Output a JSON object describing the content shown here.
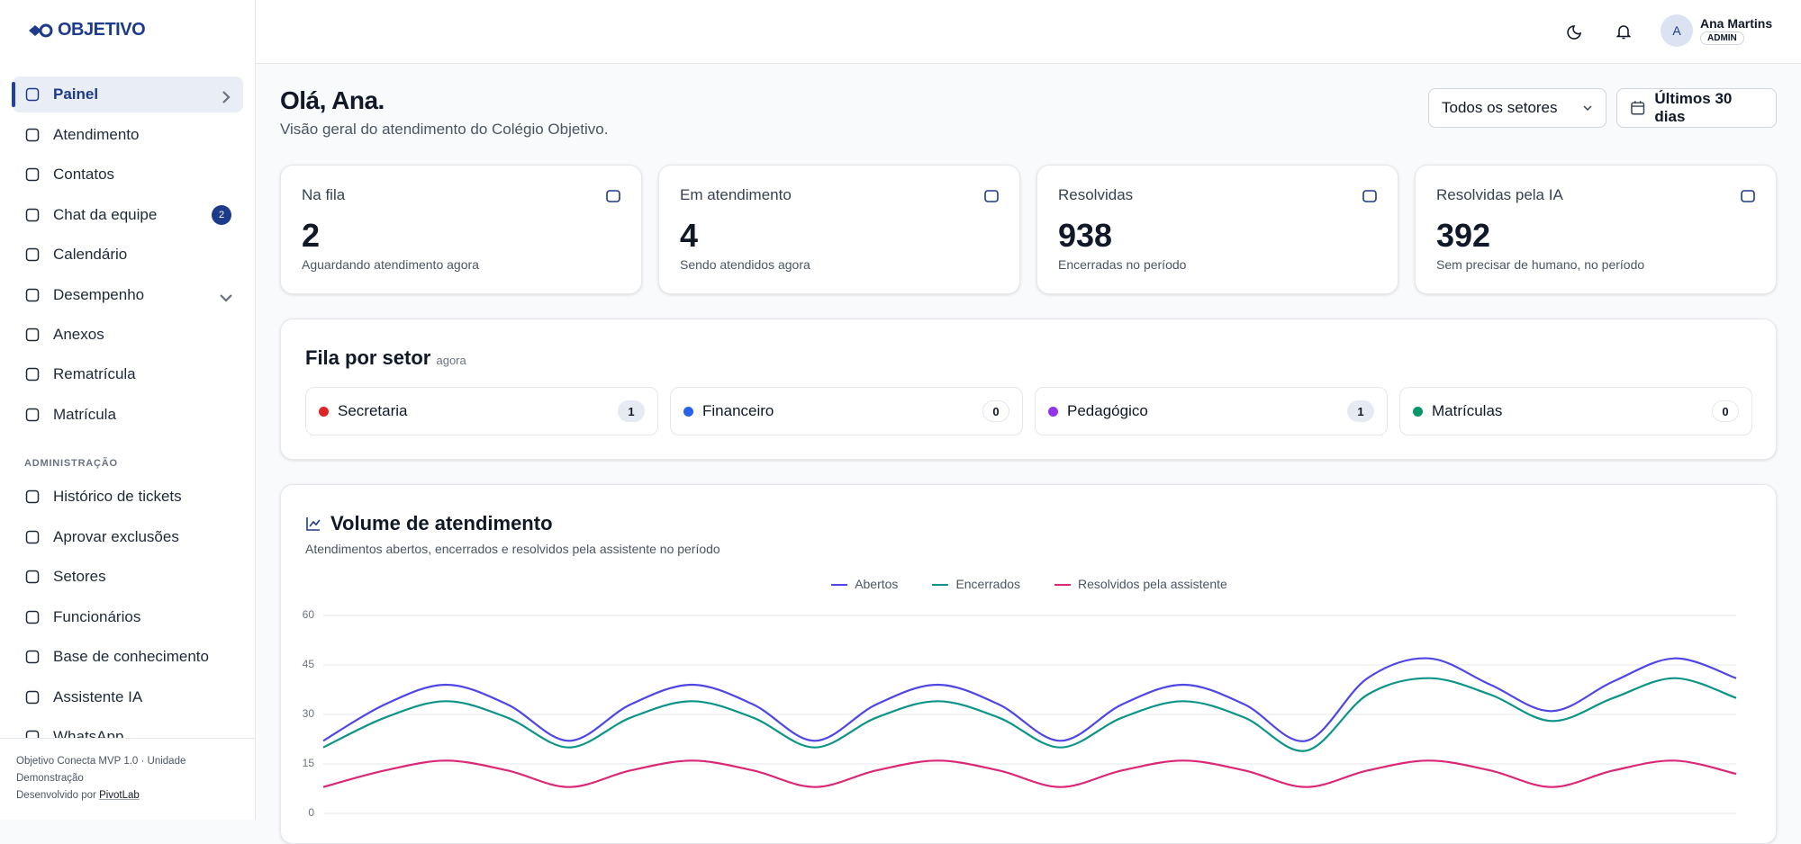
{
  "brand": "OBJETIVO",
  "nav": [
    {
      "label": "Painel"
    },
    {
      "label": "Atendimento"
    },
    {
      "label": "Contatos"
    },
    {
      "label": "Chat da equipe",
      "badge": 2
    },
    {
      "label": "Calendário"
    },
    {
      "label": "Desempenho"
    },
    {
      "label": "Anexos"
    },
    {
      "label": "Rematrícula"
    },
    {
      "label": "Matrícula"
    }
  ],
  "admin_section": "ADMINISTRAÇÃO",
  "admin_nav": [
    {
      "label": "Histórico de tickets"
    },
    {
      "label": "Aprovar exclusões"
    },
    {
      "label": "Setores"
    },
    {
      "label": "Funcionários"
    },
    {
      "label": "Base de conhecimento"
    },
    {
      "label": "Assistente IA"
    },
    {
      "label": "WhatsApp"
    }
  ],
  "footer": {
    "version": "Objetivo Conecta MVP 1.0 · Unidade Demonstração",
    "credit": "Desenvolvido por",
    "credit_link": "PivotLab"
  },
  "user": {
    "initial": "A",
    "name": "Ana Martins",
    "role": "ADMIN"
  },
  "greeting": {
    "title": "Olá, Ana.",
    "subtitle": "Visão geral do atendimento do Colégio Objetivo."
  },
  "filters": {
    "sector": "Todos os setores",
    "period": "Últimos 30 dias"
  },
  "cards": [
    {
      "label": "Na fila",
      "value": 2,
      "caption": "Aguardando atendimento agora"
    },
    {
      "label": "Em atendimento",
      "value": 4,
      "caption": "Sendo atendidos agora"
    },
    {
      "label": "Resolvidas",
      "value": 938,
      "caption": "Encerradas no período"
    },
    {
      "label": "Resolvidas pela IA",
      "value": 392,
      "caption": "Sem precisar de humano, no período"
    }
  ],
  "queue": {
    "title": "Fila por setor",
    "note": "agora",
    "sectors": [
      {
        "name": "Secretaria",
        "count": 1,
        "color": "#dc2626"
      },
      {
        "name": "Financeiro",
        "count": 0,
        "color": "#2563eb"
      },
      {
        "name": "Pedagógico",
        "count": 1,
        "color": "#9333ea"
      },
      {
        "name": "Matrículas",
        "count": 0,
        "color": "#059669"
      }
    ]
  },
  "chart_data": {
    "type": "line",
    "title": "Volume de atendimento",
    "subtitle": "Atendimentos abertos, encerrados e resolvidos pela assistente no período",
    "series": [
      {
        "name": "Abertos",
        "color": "#4f46e5",
        "values": [
          22,
          33,
          39,
          33,
          22,
          33,
          39,
          33,
          22,
          33,
          39,
          33,
          22,
          33,
          39,
          33,
          22,
          41,
          47,
          39,
          31,
          40,
          47,
          41
        ]
      },
      {
        "name": "Encerrados",
        "color": "#0d9488",
        "values": [
          20,
          29,
          34,
          29,
          20,
          29,
          34,
          29,
          20,
          29,
          34,
          29,
          20,
          29,
          34,
          29,
          19,
          36,
          41,
          36,
          28,
          35,
          41,
          35
        ]
      },
      {
        "name": "Resolvidos pela assistente",
        "color": "#db2777",
        "values": [
          8,
          13,
          16,
          13,
          8,
          13,
          16,
          13,
          8,
          13,
          16,
          13,
          8,
          13,
          16,
          13,
          8,
          13,
          16,
          13,
          8,
          13,
          16,
          12
        ]
      }
    ],
    "ylim": [
      0,
      60
    ],
    "yticks": [
      0,
      15,
      30,
      45,
      60
    ],
    "grid": true
  }
}
